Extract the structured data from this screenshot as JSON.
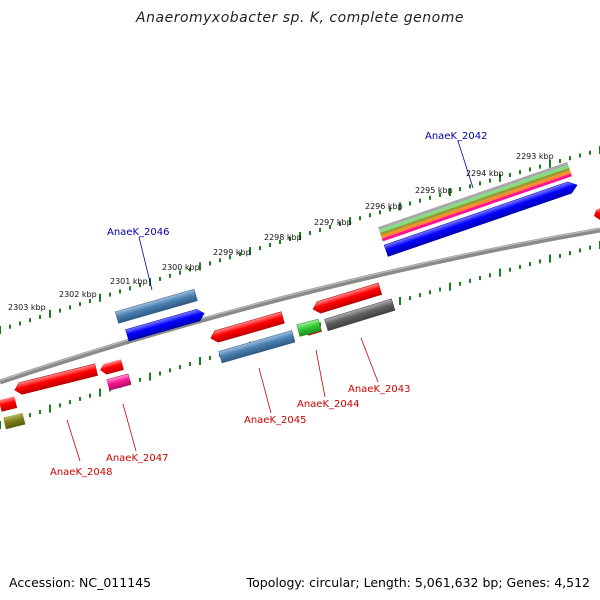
{
  "title": "Anaeromyxobacter sp. K, complete genome",
  "footer": {
    "accession": "Accession: NC_011145",
    "topology": "Topology: circular; Length: 5,061,632 bp; Genes: 4,512"
  },
  "ruler_labels": [
    "2293 kbp",
    "2294 kbp",
    "2295 kbp",
    "2296 kbp",
    "2297 kbp",
    "2298 kbp",
    "2299 kbp",
    "2300 kbp",
    "2301 kbp",
    "2302 kbp",
    "2303 kbp"
  ],
  "gene_labels": [
    {
      "id": "AnaeK_2042",
      "text": "AnaeK_2042",
      "color": "#0000aa"
    },
    {
      "id": "AnaeK_2046",
      "text": "AnaeK_2046",
      "color": "#0000aa"
    },
    {
      "id": "AnaeK_2043",
      "text": "AnaeK_2043",
      "color": "#cc0000"
    },
    {
      "id": "AnaeK_2044",
      "text": "AnaeK_2044",
      "color": "#cc0000"
    },
    {
      "id": "AnaeK_2045",
      "text": "AnaeK_2045",
      "color": "#cc0000"
    },
    {
      "id": "AnaeK_2047",
      "text": "AnaeK_2047",
      "color": "#cc0000"
    },
    {
      "id": "AnaeK_2048",
      "text": "AnaeK_2048",
      "color": "#cc0000"
    }
  ],
  "colors": {
    "backbone": "#808080",
    "ruler_tick": "#1a7f1a",
    "red_feature": "#ff0000",
    "blue_feature": "#0000ff",
    "steelblue_feature": "#4a7fb0",
    "green_feature": "#33cc33",
    "magenta_feature": "#ff1493",
    "olive_feature": "#808020",
    "gray_feature": "#606060"
  }
}
